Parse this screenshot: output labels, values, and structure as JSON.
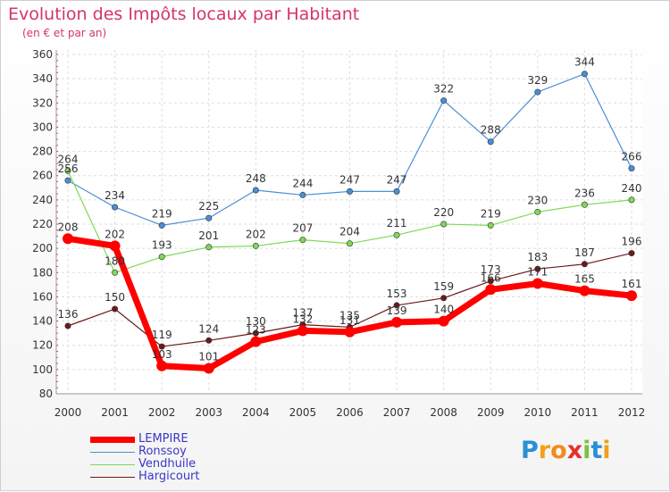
{
  "header": {
    "title": "Evolution des Impôts locaux par Habitant",
    "subtitle": "(en € et par an)"
  },
  "chart_data": {
    "type": "line",
    "x": [
      "2000",
      "2001",
      "2002",
      "2003",
      "2004",
      "2005",
      "2006",
      "2007",
      "2008",
      "2009",
      "2010",
      "2011",
      "2012"
    ],
    "ylim": [
      80,
      360
    ],
    "yticks": [
      80,
      100,
      120,
      140,
      160,
      180,
      200,
      220,
      240,
      260,
      280,
      300,
      320,
      340,
      360
    ],
    "grid": true,
    "legend_position": "bottom-left",
    "series": [
      {
        "name": "LEMPIRE",
        "color": "#ff0000",
        "values": [
          208,
          202,
          103,
          101,
          123,
          132,
          131,
          139,
          140,
          166,
          171,
          165,
          161
        ]
      },
      {
        "name": "Ronssoy",
        "color": "#4a8fd6",
        "values": [
          256,
          234,
          219,
          225,
          248,
          244,
          247,
          247,
          322,
          288,
          329,
          344,
          266
        ]
      },
      {
        "name": "Vendhuile",
        "color": "#7ed957",
        "values": [
          264,
          180,
          193,
          201,
          202,
          207,
          204,
          211,
          220,
          219,
          230,
          236,
          240
        ]
      },
      {
        "name": "Hargicourt",
        "color": "#6b1a1a",
        "values": [
          136,
          150,
          119,
          124,
          130,
          137,
          135,
          153,
          159,
          173,
          183,
          187,
          196
        ]
      }
    ]
  },
  "logo": {
    "letters": [
      "P",
      "r",
      "o",
      "x",
      "i",
      "t",
      "i"
    ],
    "colors": [
      "#2a8fd4",
      "#f2a01c",
      "#f28a1c",
      "#e8302a",
      "#7cc242",
      "#2a8fd4",
      "#f2a01c"
    ]
  }
}
